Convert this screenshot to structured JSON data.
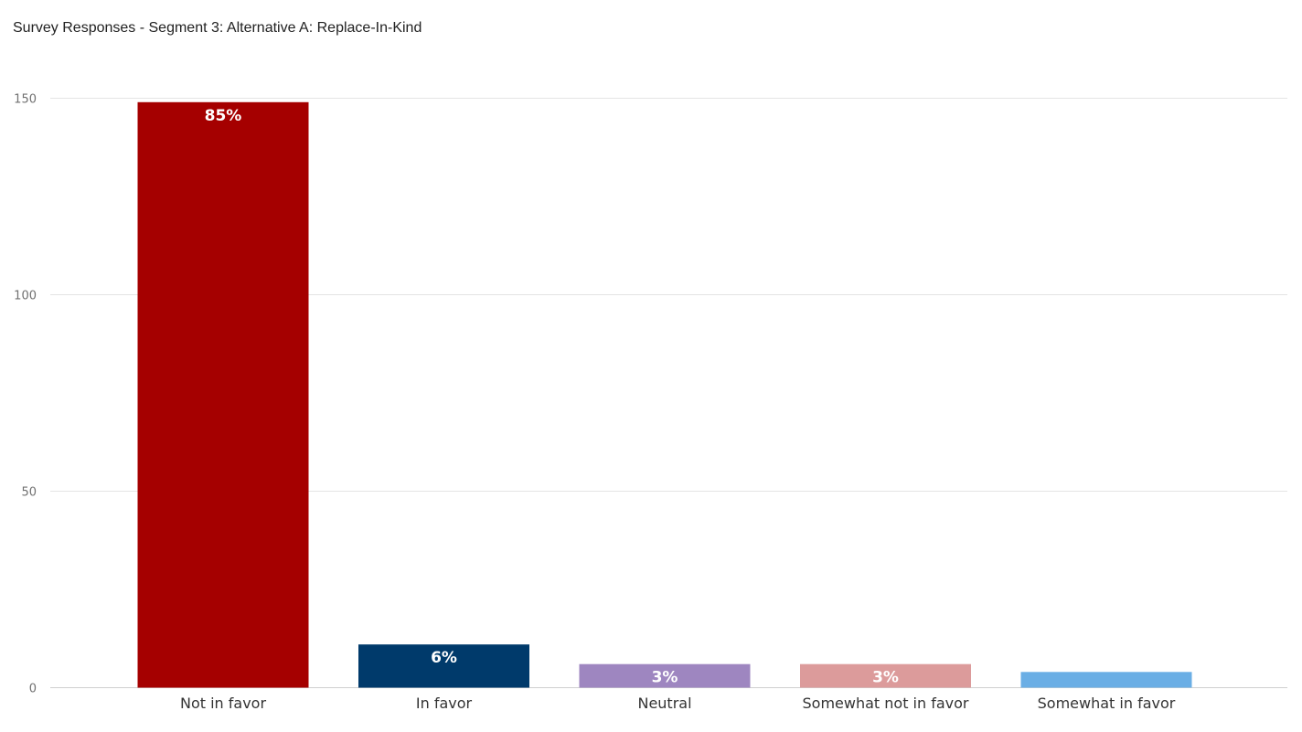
{
  "chart_data": {
    "type": "bar",
    "title": "Survey Responses - Segment 3: Alternative A: Replace-In-Kind",
    "xlabel": "",
    "ylabel": "",
    "categories": [
      "Not in favor",
      "In favor",
      "Neutral",
      "Somewhat not in favor",
      "Somewhat in favor"
    ],
    "values": [
      149,
      11,
      6,
      6,
      4
    ],
    "data_labels": [
      "85%",
      "6%",
      "3%",
      "3%",
      ""
    ],
    "colors": [
      "#a50000",
      "#003a6b",
      "#9e86c0",
      "#dc9b9b",
      "#6aaee5"
    ],
    "ylim": [
      0,
      150
    ],
    "yticks": [
      0,
      50,
      100,
      150
    ],
    "grid": true,
    "legend": "none"
  }
}
